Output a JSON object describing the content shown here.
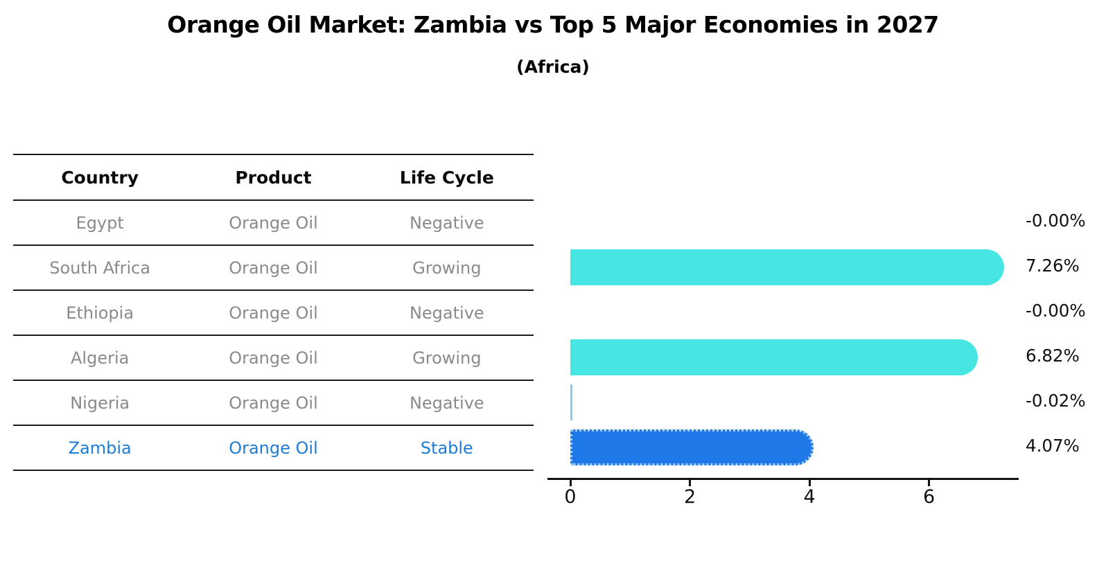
{
  "title": "Orange Oil Market: Zambia vs Top 5 Major Economies in 2027",
  "subtitle": "(Africa)",
  "table": {
    "headers": [
      "Country",
      "Product",
      "Life Cycle"
    ],
    "rows": [
      {
        "country": "Egypt",
        "product": "Orange Oil",
        "life_cycle": "Negative",
        "highlight": false
      },
      {
        "country": "South Africa",
        "product": "Orange Oil",
        "life_cycle": "Growing",
        "highlight": false
      },
      {
        "country": "Ethiopia",
        "product": "Orange Oil",
        "life_cycle": "Negative",
        "highlight": false
      },
      {
        "country": "Algeria",
        "product": "Orange Oil",
        "life_cycle": "Growing",
        "highlight": false
      },
      {
        "country": "Nigeria",
        "product": "Orange Oil",
        "life_cycle": "Negative",
        "highlight": false
      },
      {
        "country": "Zambia",
        "product": "Orange Oil",
        "life_cycle": "Stable",
        "highlight": true
      }
    ]
  },
  "chart_data": {
    "type": "bar",
    "orientation": "horizontal",
    "title": "Orange Oil Market: Zambia vs Top 5 Major Economies in 2027 (Africa)",
    "categories": [
      "Egypt",
      "South Africa",
      "Ethiopia",
      "Algeria",
      "Nigeria",
      "Zambia"
    ],
    "values": [
      -0.0,
      7.26,
      -0.0,
      6.82,
      -0.02,
      4.07
    ],
    "value_labels": [
      "-0.00%",
      "7.26%",
      "-0.00%",
      "6.82%",
      "-0.02%",
      "4.07%"
    ],
    "highlight_category": "Zambia",
    "xlim": [
      0,
      7.5
    ],
    "xticks": [
      0,
      2,
      4,
      6
    ],
    "grid": false,
    "legend": false,
    "xlabel": "",
    "ylabel": ""
  },
  "colors": {
    "bar_default": "#47E6E2",
    "bar_highlight": "#1E78E8",
    "bar_highlight_border": "#A5D2F6",
    "bar_sliver": "#8CC8EA",
    "highlight_text": "#1F7CD6",
    "table_text": "#8A8A8A",
    "header_text": "#0A0A0A",
    "axis": "#111111"
  }
}
